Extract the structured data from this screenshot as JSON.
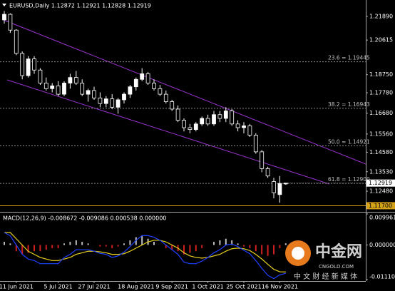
{
  "chart_data": {
    "type": "candlestick",
    "header": "EURUSD,Daily  1.12872 1.12921 1.12828 1.12919",
    "categories": [
      null,
      null,
      "11 Jun 2021",
      null,
      null,
      null,
      null,
      null,
      null,
      "5 Jul 2021",
      null,
      null,
      null,
      null,
      null,
      "27 Jul 2021",
      null,
      null,
      null,
      null,
      null,
      null,
      "18 Aug 2021",
      null,
      null,
      null,
      null,
      null,
      "9 Sep 2021",
      null,
      null,
      null,
      null,
      null,
      "1 Oct 2021",
      null,
      null,
      null,
      null,
      null,
      "25 Oct 2021",
      null,
      null,
      null,
      null,
      null,
      "16 Nov 2021",
      null
    ],
    "open": [
      1.217,
      1.22,
      1.2115,
      1.199,
      1.187,
      1.196,
      1.19,
      1.183,
      1.18,
      1.1815,
      1.177,
      1.183,
      1.186,
      1.183,
      1.177,
      1.179,
      1.175,
      1.172,
      1.1745,
      1.17,
      1.174,
      1.177,
      1.181,
      1.185,
      1.188,
      1.183,
      1.18,
      1.177,
      1.173,
      1.169,
      1.163,
      1.159,
      1.158,
      1.161,
      1.164,
      1.161,
      1.166,
      1.164,
      1.168,
      1.161,
      1.159,
      1.16,
      1.155,
      1.146,
      1.137,
      1.13,
      1.123,
      1.12872
    ],
    "high": [
      1.2218,
      1.2205,
      1.212,
      1.2,
      1.1975,
      1.1975,
      1.191,
      1.186,
      1.183,
      1.184,
      1.184,
      1.188,
      1.1895,
      1.185,
      1.18,
      1.181,
      1.178,
      1.176,
      1.177,
      1.175,
      1.178,
      1.182,
      1.186,
      1.191,
      1.189,
      1.185,
      1.182,
      1.179,
      1.174,
      1.171,
      1.164,
      1.161,
      1.162,
      1.165,
      1.166,
      1.168,
      1.168,
      1.17,
      1.169,
      1.163,
      1.162,
      1.161,
      1.156,
      1.147,
      1.138,
      1.132,
      1.133,
      1.12921
    ],
    "low": [
      1.215,
      1.21,
      1.198,
      1.185,
      1.186,
      1.188,
      1.182,
      1.179,
      1.178,
      1.176,
      1.176,
      1.18,
      1.182,
      1.176,
      1.173,
      1.174,
      1.17,
      1.17,
      1.169,
      1.1665,
      1.172,
      1.175,
      1.179,
      1.184,
      1.182,
      1.179,
      1.176,
      1.172,
      1.168,
      1.162,
      1.157,
      1.156,
      1.157,
      1.16,
      1.16,
      1.16,
      1.162,
      1.162,
      1.16,
      1.157,
      1.156,
      1.154,
      1.145,
      1.135,
      1.132,
      1.121,
      1.1186,
      1.12828
    ],
    "close": [
      1.22,
      1.2115,
      1.199,
      1.187,
      1.196,
      1.19,
      1.183,
      1.18,
      1.1815,
      1.177,
      1.183,
      1.186,
      1.183,
      1.177,
      1.179,
      1.175,
      1.172,
      1.1745,
      1.17,
      1.174,
      1.177,
      1.181,
      1.185,
      1.188,
      1.183,
      1.18,
      1.177,
      1.173,
      1.169,
      1.163,
      1.159,
      1.158,
      1.161,
      1.164,
      1.161,
      1.166,
      1.164,
      1.168,
      1.161,
      1.159,
      1.16,
      1.155,
      1.146,
      1.137,
      1.133,
      1.124,
      1.129,
      1.12919
    ],
    "ylim": [
      1.1141,
      1.2277
    ],
    "yticks": [
      {
        "value": 1.2189,
        "label": "1.21890"
      },
      {
        "value": 1.20615,
        "label": "1.20615"
      },
      {
        "value": 1.1875,
        "label": "1.18750"
      },
      {
        "value": 1.1778,
        "label": "1.17780"
      },
      {
        "value": 1.1668,
        "label": "1.16680"
      },
      {
        "value": 1.1556,
        "label": "1.15560"
      },
      {
        "value": 1.1458,
        "label": "1.14580"
      },
      {
        "value": 1.1353,
        "label": "1.13530"
      },
      {
        "value": 1.1248,
        "label": "1.12480"
      }
    ],
    "fib_levels": [
      {
        "value": 1.19445,
        "label": "23.6 = 1.19445"
      },
      {
        "value": 1.16943,
        "label": "38.2 = 1.16943"
      },
      {
        "value": 1.14921,
        "label": "50.0 = 1.14921"
      },
      {
        "value": 1.129,
        "label": "61.8 = 1.12900"
      }
    ],
    "hline": {
      "value": 1.117,
      "label": "1.11700",
      "color": "#d4a017"
    },
    "up_color": "#ffffff",
    "down_color": "#000000",
    "macd": {
      "header": "MACD(12,26,9) -0.008672 -0.009086 0.000538 0.000000",
      "ylim": [
        -0.011107,
        0.009961
      ],
      "yticks": [
        {
          "value": 0.009961,
          "label": "0.009961"
        },
        {
          "value": 0,
          "label": "0.000000"
        },
        {
          "value": -0.011107,
          "label": "-0.011107"
        }
      ],
      "histogram": [
        0.001,
        0.0005,
        -0.002,
        -0.003,
        -0.0025,
        -0.002,
        -0.002,
        -0.0015,
        -0.001,
        -0.001,
        0.0005,
        0.001,
        0.0015,
        0.001,
        0.0005,
        0,
        -0.0005,
        -0.0005,
        -0.001,
        -0.0005,
        0.0005,
        0.0015,
        0.0025,
        0.003,
        0.002,
        0.001,
        0,
        -0.001,
        -0.0015,
        -0.002,
        -0.003,
        -0.0025,
        -0.002,
        -0.001,
        0,
        0.001,
        0.0015,
        0.002,
        0.0015,
        0.0005,
        -0.0005,
        -0.001,
        -0.002,
        -0.003,
        -0.0035,
        -0.003,
        -0.001,
        0.000538
      ],
      "hist_up_color": "#c0c0c0",
      "hist_down_color": "#d02020",
      "series": [
        {
          "color": "#e8d020",
          "values": [
            0.004,
            0.004,
            0.002,
            0,
            -0.002,
            -0.003,
            -0.004,
            -0.0045,
            -0.005,
            -0.005,
            -0.0045,
            -0.004,
            -0.003,
            -0.0025,
            -0.002,
            -0.002,
            -0.0022,
            -0.0025,
            -0.003,
            -0.003,
            -0.0028,
            -0.002,
            -0.001,
            0,
            0.001,
            0.0015,
            0.0015,
            0.001,
            0,
            -0.001,
            -0.0025,
            -0.0035,
            -0.004,
            -0.0042,
            -0.004,
            -0.0035,
            -0.003,
            -0.002,
            -0.0012,
            -0.001,
            -0.0012,
            -0.0018,
            -0.003,
            -0.0045,
            -0.0062,
            -0.0078,
            -0.0086,
            -0.008672
          ]
        },
        {
          "color": "#2040ff",
          "values": [
            0.004,
            0.003,
            0,
            -0.003,
            -0.0045,
            -0.005,
            -0.006,
            -0.006,
            -0.006,
            -0.006,
            -0.004,
            -0.003,
            -0.0015,
            -0.0015,
            -0.0015,
            -0.002,
            -0.0027,
            -0.003,
            -0.004,
            -0.0035,
            -0.0023,
            -0.0005,
            0.0015,
            0.003,
            0.003,
            0.0025,
            0.0015,
            0,
            -0.0015,
            -0.003,
            -0.0055,
            -0.006,
            -0.006,
            -0.0052,
            -0.004,
            -0.0025,
            -0.0015,
            0,
            0.0003,
            -0.0005,
            -0.0017,
            -0.0028,
            -0.005,
            -0.0075,
            -0.0097,
            -0.0108,
            -0.0096,
            -0.009086
          ]
        }
      ]
    }
  },
  "watermark": {
    "brand": "中金网",
    "site": "CNGOLD.COM",
    "tagline": "中 文 财 经 新 媒 体"
  }
}
